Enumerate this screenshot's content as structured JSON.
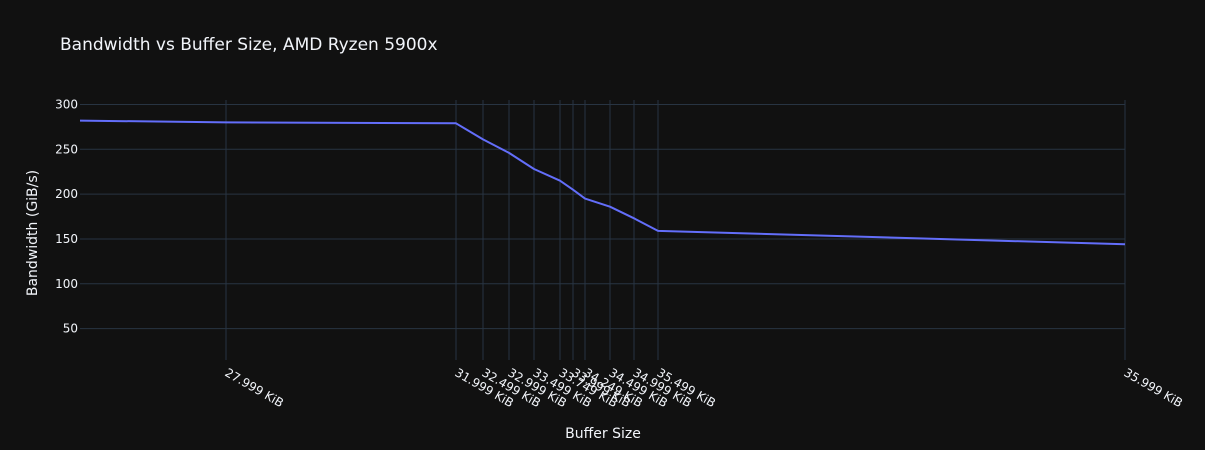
{
  "chart_data": {
    "type": "line",
    "title": "Bandwidth vs Buffer Size, AMD Ryzen 5900x",
    "xlabel": "Buffer Size",
    "ylabel": "Bandwidth (GiB/s)",
    "x_unit": "KiB",
    "x": [
      26000,
      27999,
      31999,
      32499,
      32999,
      33499,
      33749,
      33999,
      34249,
      34499,
      34999,
      35499,
      35999,
      45000
    ],
    "x_tick_values": [
      27999,
      31999,
      32499,
      32999,
      33499,
      33749,
      33999,
      34249,
      34499,
      34999,
      35499,
      35999
    ],
    "x_tick_labels": [
      "27.999 KiB",
      "31.999 KiB",
      "32.499 KiB",
      "32.999 KiB",
      "33.499 KiB",
      "33.749 KiB",
      "33.999 KiB",
      "34.249 KiB",
      "34.499 KiB",
      "34.999 KiB",
      "35.499 KiB",
      "35.999 KiB"
    ],
    "xlim": [
      26000,
      45000
    ],
    "ylim": [
      15,
      305
    ],
    "y_ticks": [
      50,
      100,
      150,
      200,
      250,
      300
    ],
    "grid": true,
    "colors": {
      "series": "#636efa",
      "grid": "#283442",
      "text": "#f2f5fa",
      "background": "#111111"
    },
    "series": [
      {
        "values": [
          282,
          280,
          279,
          261,
          246,
          228,
          215,
          205,
          195,
          186,
          173,
          159,
          144,
          144
        ]
      }
    ]
  }
}
